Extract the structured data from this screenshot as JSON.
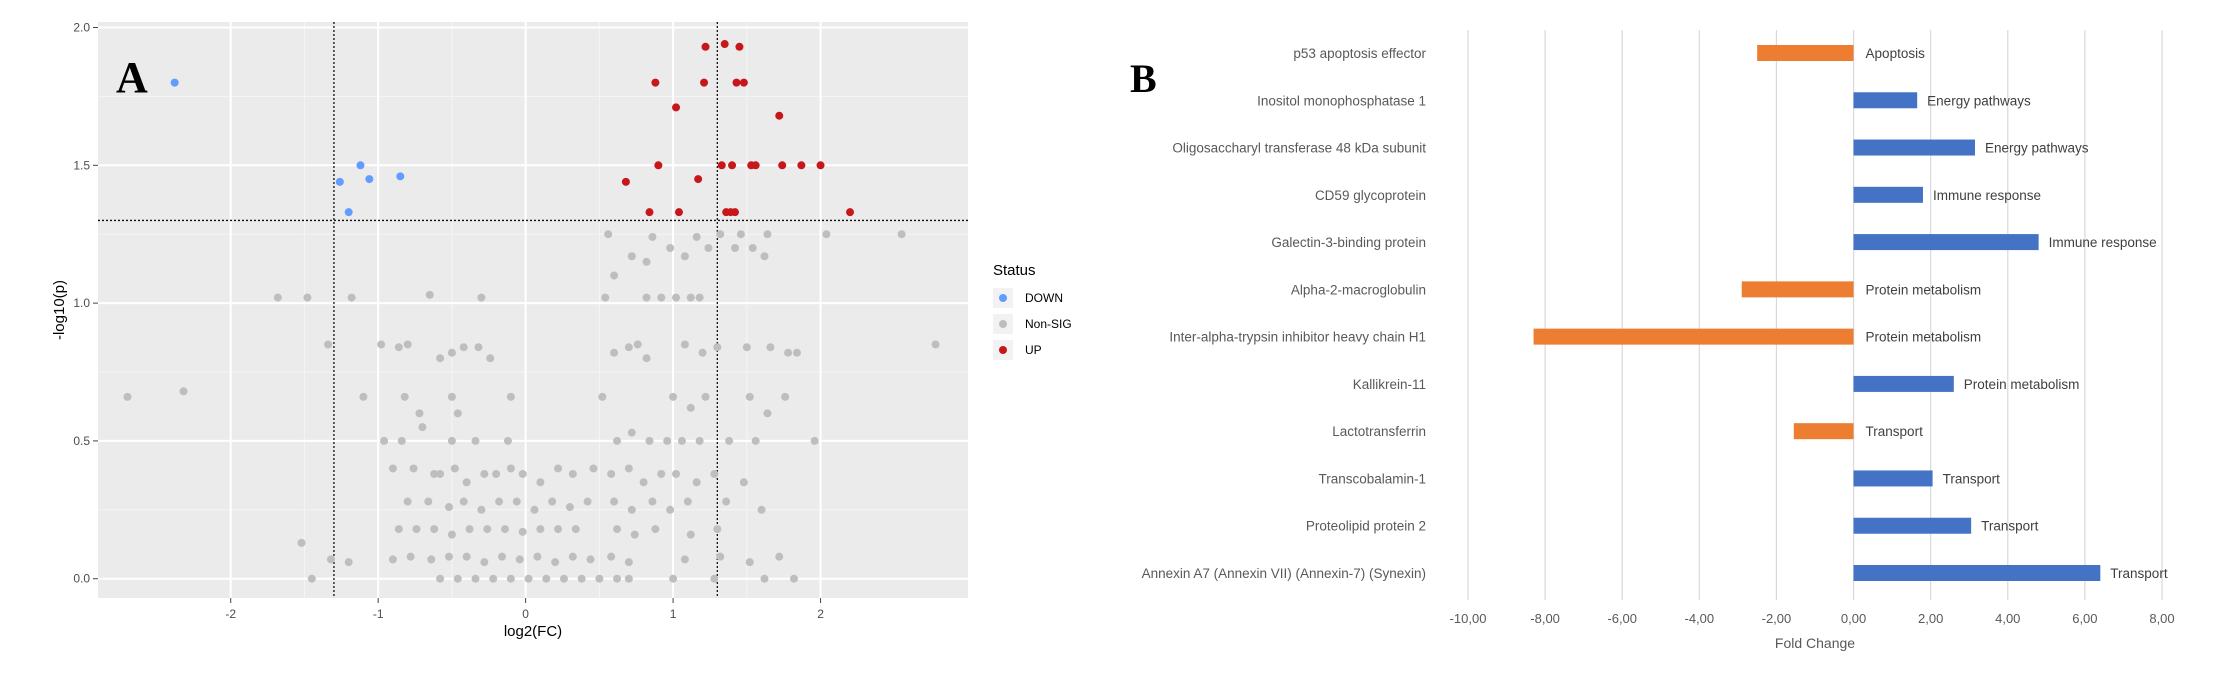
{
  "chart_data": [
    {
      "type": "scatter",
      "panel_label": "A",
      "xlabel": "log2(FC)",
      "ylabel": "-log10(p)",
      "xlim": [
        -2.9,
        3.0
      ],
      "ylim": [
        -0.07,
        2.02
      ],
      "x_ticks": [
        -2,
        -1,
        0,
        1,
        2
      ],
      "x_tick_labels": [
        "-2",
        "-1",
        "0",
        "1",
        "2"
      ],
      "y_ticks": [
        0.0,
        0.5,
        1.0,
        1.5,
        2.0
      ],
      "y_tick_labels": [
        "0.0",
        "0.5",
        "1.0",
        "1.5",
        "2.0"
      ],
      "grid": true,
      "background": "#EBEBEB",
      "thresholds": {
        "x": [
          -1.3,
          1.3
        ],
        "y": 1.3
      },
      "legend": {
        "title": "Status",
        "placement": "right",
        "entries": [
          {
            "label": "DOWN",
            "color": "#619CFF"
          },
          {
            "label": "Non-SIG",
            "color": "#BEBEBE"
          },
          {
            "label": "UP",
            "color": "#C8171B"
          }
        ]
      },
      "series": [
        {
          "status": "DOWN",
          "color": "#619CFF",
          "points": [
            [
              -2.38,
              1.8
            ],
            [
              -1.26,
              1.44
            ],
            [
              -1.12,
              1.5
            ],
            [
              -1.06,
              1.45
            ],
            [
              -0.85,
              1.46
            ],
            [
              -1.2,
              1.33
            ]
          ]
        },
        {
          "status": "UP",
          "color": "#C8171B",
          "points": [
            [
              1.22,
              1.93
            ],
            [
              1.35,
              1.94
            ],
            [
              1.45,
              1.93
            ],
            [
              0.88,
              1.8
            ],
            [
              1.21,
              1.8
            ],
            [
              1.43,
              1.8
            ],
            [
              1.48,
              1.8
            ],
            [
              1.02,
              1.71
            ],
            [
              1.72,
              1.68
            ],
            [
              0.68,
              1.44
            ],
            [
              0.9,
              1.5
            ],
            [
              1.17,
              1.45
            ],
            [
              1.33,
              1.5
            ],
            [
              1.4,
              1.5
            ],
            [
              1.53,
              1.5
            ],
            [
              1.56,
              1.5
            ],
            [
              1.74,
              1.5
            ],
            [
              1.87,
              1.5
            ],
            [
              2.0,
              1.5
            ],
            [
              0.84,
              1.33
            ],
            [
              1.04,
              1.33
            ],
            [
              1.36,
              1.33
            ],
            [
              1.39,
              1.33
            ],
            [
              1.42,
              1.33
            ],
            [
              2.2,
              1.33
            ]
          ]
        },
        {
          "status": "Non-SIG",
          "color": "#BEBEBE",
          "points": [
            [
              -2.7,
              0.66
            ],
            [
              -2.32,
              0.68
            ],
            [
              -1.68,
              1.02
            ],
            [
              -1.48,
              1.02
            ],
            [
              -1.34,
              0.85
            ],
            [
              -1.18,
              1.02
            ],
            [
              -0.65,
              1.03
            ],
            [
              -0.3,
              1.02
            ],
            [
              -0.98,
              0.85
            ],
            [
              -0.86,
              0.84
            ],
            [
              -0.8,
              0.85
            ],
            [
              -0.58,
              0.8
            ],
            [
              -0.5,
              0.82
            ],
            [
              -0.42,
              0.84
            ],
            [
              -0.32,
              0.84
            ],
            [
              -0.24,
              0.8
            ],
            [
              -1.1,
              0.66
            ],
            [
              -0.82,
              0.66
            ],
            [
              -0.72,
              0.6
            ],
            [
              -0.5,
              0.66
            ],
            [
              -0.46,
              0.6
            ],
            [
              -0.1,
              0.66
            ],
            [
              -0.96,
              0.5
            ],
            [
              -0.84,
              0.5
            ],
            [
              -0.7,
              0.55
            ],
            [
              -0.5,
              0.5
            ],
            [
              -0.34,
              0.5
            ],
            [
              -0.12,
              0.5
            ],
            [
              -0.9,
              0.4
            ],
            [
              -0.76,
              0.4
            ],
            [
              -0.62,
              0.38
            ],
            [
              -0.58,
              0.38
            ],
            [
              -0.48,
              0.4
            ],
            [
              -0.4,
              0.35
            ],
            [
              -0.28,
              0.38
            ],
            [
              -0.2,
              0.38
            ],
            [
              -0.1,
              0.4
            ],
            [
              -0.02,
              0.38
            ],
            [
              0.1,
              0.35
            ],
            [
              0.22,
              0.4
            ],
            [
              0.32,
              0.38
            ],
            [
              0.46,
              0.4
            ],
            [
              -0.8,
              0.28
            ],
            [
              -0.66,
              0.28
            ],
            [
              -0.52,
              0.26
            ],
            [
              -0.42,
              0.28
            ],
            [
              -0.3,
              0.25
            ],
            [
              -0.18,
              0.28
            ],
            [
              -0.06,
              0.28
            ],
            [
              0.06,
              0.25
            ],
            [
              0.18,
              0.28
            ],
            [
              0.3,
              0.26
            ],
            [
              0.42,
              0.28
            ],
            [
              -0.86,
              0.18
            ],
            [
              -0.74,
              0.18
            ],
            [
              -0.62,
              0.18
            ],
            [
              -0.5,
              0.16
            ],
            [
              -0.38,
              0.18
            ],
            [
              -0.26,
              0.18
            ],
            [
              -0.14,
              0.18
            ],
            [
              -0.02,
              0.17
            ],
            [
              0.1,
              0.18
            ],
            [
              0.22,
              0.18
            ],
            [
              0.34,
              0.18
            ],
            [
              -0.9,
              0.07
            ],
            [
              -0.78,
              0.08
            ],
            [
              -0.64,
              0.07
            ],
            [
              -0.52,
              0.08
            ],
            [
              -0.4,
              0.08
            ],
            [
              -0.28,
              0.06
            ],
            [
              -0.16,
              0.08
            ],
            [
              -0.04,
              0.07
            ],
            [
              0.08,
              0.08
            ],
            [
              0.2,
              0.06
            ],
            [
              0.32,
              0.08
            ],
            [
              0.44,
              0.07
            ],
            [
              -0.58,
              0.0
            ],
            [
              -0.46,
              0.0
            ],
            [
              -0.34,
              0.0
            ],
            [
              -0.22,
              0.0
            ],
            [
              -0.1,
              0.0
            ],
            [
              0.02,
              0.0
            ],
            [
              0.14,
              0.0
            ],
            [
              0.26,
              0.0
            ],
            [
              0.38,
              0.0
            ],
            [
              0.5,
              0.0
            ],
            [
              -1.32,
              0.07
            ],
            [
              -1.2,
              0.06
            ],
            [
              -1.45,
              0.0
            ],
            [
              -1.52,
              0.13
            ],
            [
              0.52,
              0.66
            ],
            [
              0.6,
              0.82
            ],
            [
              0.7,
              0.84
            ],
            [
              0.76,
              0.85
            ],
            [
              0.82,
              0.8
            ],
            [
              0.62,
              0.5
            ],
            [
              0.72,
              0.53
            ],
            [
              0.84,
              0.5
            ],
            [
              0.96,
              0.5
            ],
            [
              0.58,
              0.38
            ],
            [
              0.7,
              0.4
            ],
            [
              0.8,
              0.35
            ],
            [
              0.92,
              0.38
            ],
            [
              0.6,
              0.28
            ],
            [
              0.72,
              0.25
            ],
            [
              0.86,
              0.28
            ],
            [
              0.98,
              0.25
            ],
            [
              0.62,
              0.18
            ],
            [
              0.74,
              0.16
            ],
            [
              0.88,
              0.18
            ],
            [
              0.58,
              0.08
            ],
            [
              0.7,
              0.06
            ],
            [
              0.62,
              0.0
            ],
            [
              0.7,
              0.0
            ],
            [
              0.54,
              1.02
            ],
            [
              0.6,
              1.1
            ],
            [
              0.82,
              1.02
            ],
            [
              0.92,
              1.02
            ],
            [
              1.02,
              1.02
            ],
            [
              1.12,
              1.02
            ],
            [
              1.18,
              1.02
            ],
            [
              0.72,
              1.17
            ],
            [
              0.82,
              1.15
            ],
            [
              0.98,
              1.2
            ],
            [
              1.08,
              1.17
            ],
            [
              1.24,
              1.2
            ],
            [
              1.42,
              1.2
            ],
            [
              1.54,
              1.2
            ],
            [
              1.62,
              1.17
            ],
            [
              0.56,
              1.25
            ],
            [
              0.86,
              1.24
            ],
            [
              1.16,
              1.24
            ],
            [
              1.32,
              1.25
            ],
            [
              1.46,
              1.25
            ],
            [
              1.64,
              1.25
            ],
            [
              2.04,
              1.25
            ],
            [
              2.55,
              1.25
            ],
            [
              1.08,
              0.85
            ],
            [
              1.2,
              0.82
            ],
            [
              1.3,
              0.84
            ],
            [
              1.5,
              0.84
            ],
            [
              1.66,
              0.84
            ],
            [
              1.78,
              0.82
            ],
            [
              1.84,
              0.82
            ],
            [
              1.0,
              0.66
            ],
            [
              1.12,
              0.62
            ],
            [
              1.22,
              0.66
            ],
            [
              1.52,
              0.66
            ],
            [
              1.64,
              0.6
            ],
            [
              1.76,
              0.66
            ],
            [
              1.06,
              0.5
            ],
            [
              1.18,
              0.5
            ],
            [
              1.38,
              0.5
            ],
            [
              1.56,
              0.5
            ],
            [
              1.96,
              0.5
            ],
            [
              1.02,
              0.38
            ],
            [
              1.16,
              0.35
            ],
            [
              1.28,
              0.38
            ],
            [
              1.48,
              0.35
            ],
            [
              1.1,
              0.28
            ],
            [
              1.36,
              0.28
            ],
            [
              1.6,
              0.25
            ],
            [
              1.12,
              0.16
            ],
            [
              1.3,
              0.18
            ],
            [
              1.08,
              0.07
            ],
            [
              1.32,
              0.08
            ],
            [
              1.52,
              0.06
            ],
            [
              1.72,
              0.08
            ],
            [
              1.0,
              0.0
            ],
            [
              1.28,
              0.0
            ],
            [
              1.62,
              0.0
            ],
            [
              1.82,
              0.0
            ],
            [
              2.78,
              0.85
            ]
          ]
        }
      ]
    },
    {
      "type": "bar",
      "orientation": "horizontal",
      "panel_label": "B",
      "xlabel": "Fold Change",
      "xlim": [
        -10,
        8
      ],
      "x_ticks": [
        -10,
        -8,
        -6,
        -4,
        -2,
        0,
        2,
        4,
        6,
        8
      ],
      "x_tick_labels": [
        "-10,00",
        "-8,00",
        "-6,00",
        "-4,00",
        "-2,00",
        "0,00",
        "2,00",
        "4,00",
        "6,00",
        "8,00"
      ],
      "grid": true,
      "colors": {
        "positive": "#4472C4",
        "negative": "#ED7D31"
      },
      "categories": [
        "p53 apoptosis effector",
        "Inositol monophosphatase 1",
        "Oligosaccharyl transferase 48 kDa subunit",
        "CD59 glycoprotein",
        "Galectin-3-binding protein",
        "Alpha-2-macroglobulin",
        "Inter-alpha-trypsin inhibitor heavy chain H1",
        "Kallikrein-11",
        "Lactotransferrin",
        "Transcobalamin-1",
        "Proteolipid protein 2",
        "Annexin A7 (Annexin VII) (Annexin-7) (Synexin)"
      ],
      "values": [
        -2.5,
        1.65,
        3.15,
        1.8,
        4.8,
        -2.9,
        -8.3,
        2.6,
        -1.55,
        2.05,
        3.05,
        6.4
      ],
      "annotations": [
        "Apoptosis",
        "Energy pathways",
        "Energy pathways",
        "Immune response",
        "Immune response",
        "Protein metabolism",
        "Protein metabolism",
        "Protein metabolism",
        "Transport",
        "Transport",
        "Transport",
        "Transport"
      ]
    }
  ]
}
